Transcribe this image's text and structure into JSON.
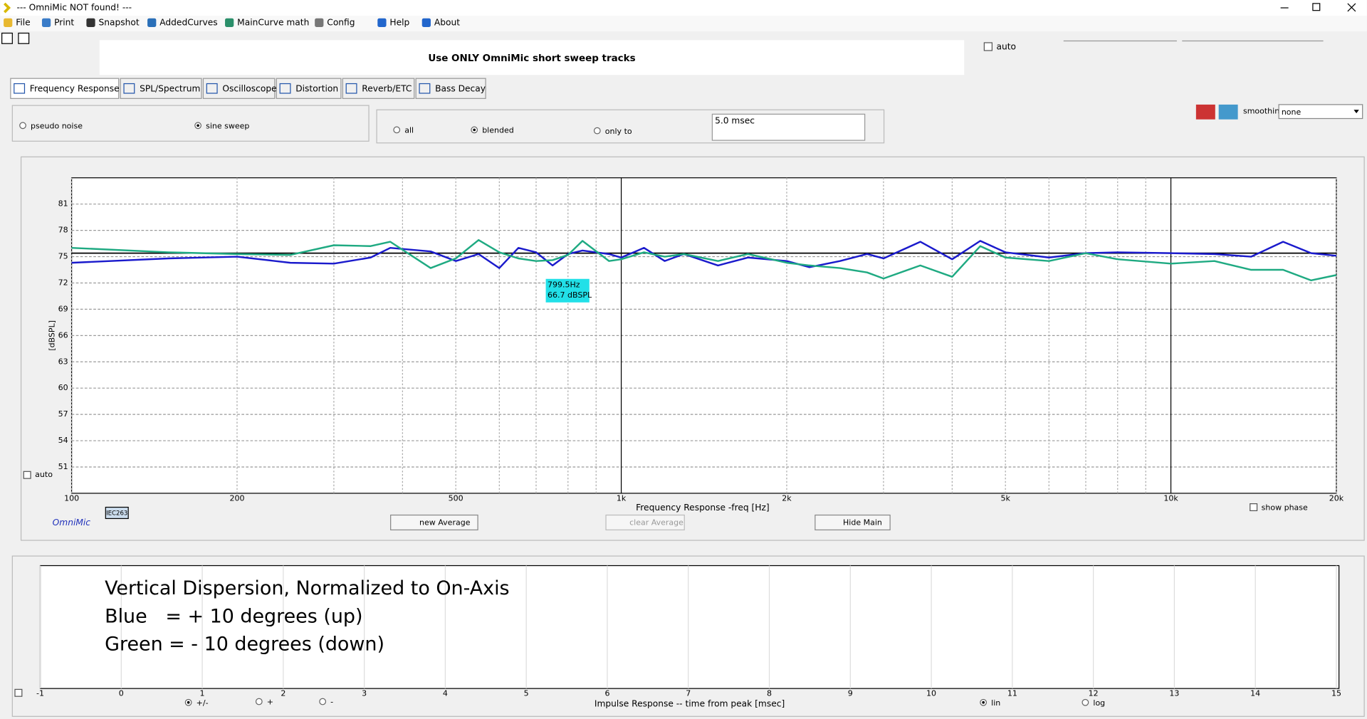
{
  "window": {
    "title": "--- OmniMic NOT found! ---",
    "menu": [
      "File",
      "Print",
      "Snapshot",
      "AddedCurves",
      "MainCurve math",
      "Config",
      "Help",
      "About"
    ]
  },
  "toolbar": {
    "auto": "auto",
    "banner": "Use ONLY OmniMic short sweep tracks"
  },
  "tabs": [
    "Frequency Response",
    "SPL/Spectrum",
    "Oscilloscope",
    "Distortion",
    "Reverb/ETC",
    "Bass Decay"
  ],
  "options": {
    "excitation": [
      "pseudo noise",
      "sine sweep"
    ],
    "gating": [
      "all",
      "blended",
      "only to"
    ],
    "gate_time": "5.0 msec",
    "smoothing_label": "smoothing",
    "smoothing": "none"
  },
  "controls": {
    "auto": "auto",
    "brand": "OmniMic",
    "mic": "IEC263",
    "new_average": "new Average",
    "clear_average": "clear Average",
    "hide_main": "Hide Main",
    "show_phase": "show phase",
    "impulse_modes": [
      "+/-",
      "+",
      "-"
    ],
    "impulse_scales": [
      "lin",
      "log"
    ]
  },
  "chart_data": [
    {
      "type": "line",
      "xscale": "log",
      "ylabel": "[dBSPL]",
      "xlabel": "Frequency Response -freq [Hz]",
      "xlim": [
        100,
        20000
      ],
      "xticks": [
        100,
        200,
        500,
        {
          "value": 1000,
          "label": "1k"
        },
        {
          "value": 2000,
          "label": "2k"
        },
        {
          "value": 5000,
          "label": "5k"
        },
        {
          "value": 10000,
          "label": "10k"
        },
        {
          "value": 20000,
          "label": "20k"
        }
      ],
      "x_minor_ticks": [
        300,
        400,
        600,
        700,
        800,
        900,
        3000,
        4000,
        6000,
        7000,
        8000,
        9000
      ],
      "ylim": [
        48,
        84
      ],
      "yticks": [
        51,
        54,
        57,
        60,
        63,
        66,
        69,
        72,
        75,
        78,
        81
      ],
      "grid": true,
      "x": [
        100,
        150,
        200,
        250,
        300,
        350,
        380,
        450,
        500,
        550,
        600,
        650,
        700,
        750,
        800,
        850,
        950,
        1000,
        1100,
        1200,
        1300,
        1500,
        1700,
        2000,
        2200,
        2500,
        2800,
        3000,
        3500,
        4000,
        4500,
        5000,
        6000,
        7000,
        8000,
        10000,
        12000,
        14000,
        16000,
        18000,
        20000
      ],
      "series": [
        {
          "color": "#1a1acc",
          "values": [
            74.3,
            74.8,
            75.0,
            74.3,
            74.2,
            74.9,
            76.0,
            75.6,
            74.5,
            75.3,
            73.7,
            76.0,
            75.5,
            74.0,
            75.3,
            75.7,
            75.3,
            74.9,
            76.0,
            74.5,
            75.3,
            74.0,
            74.9,
            74.5,
            73.8,
            74.5,
            75.3,
            74.8,
            76.7,
            74.7,
            76.8,
            75.5,
            74.9,
            75.4,
            75.5,
            75.4,
            75.3,
            75.0,
            76.7,
            75.4,
            75.1
          ]
        },
        {
          "color": "#1faa82",
          "values": [
            76.0,
            75.5,
            75.3,
            75.2,
            76.3,
            76.2,
            76.7,
            73.7,
            74.8,
            76.9,
            75.5,
            74.8,
            74.5,
            74.6,
            75.2,
            76.8,
            74.5,
            74.7,
            75.5,
            75.0,
            75.3,
            74.5,
            75.3,
            74.3,
            74.0,
            73.7,
            73.2,
            72.5,
            74.0,
            72.7,
            76.2,
            74.9,
            74.5,
            75.4,
            74.7,
            74.2,
            74.5,
            73.5,
            73.5,
            72.3,
            72.9
          ]
        }
      ],
      "reference": {
        "color": "#000000",
        "value": 75.4
      },
      "cursor": [
        "799.5Hz",
        "66.7 dBSPL"
      ]
    },
    {
      "type": "line",
      "xlabel": "Impulse Response  -- time from peak [msec]",
      "xlim": [
        -1,
        15
      ],
      "xticks": [
        -1,
        0,
        1,
        2,
        3,
        4,
        5,
        6,
        7,
        8,
        9,
        10,
        11,
        12,
        13,
        14,
        15
      ],
      "grid": true,
      "annotation": [
        "Vertical Dispersion, Normalized to On-Axis",
        "Blue   = + 10 degrees (up)",
        "Green = - 10 degrees (down)"
      ]
    }
  ]
}
